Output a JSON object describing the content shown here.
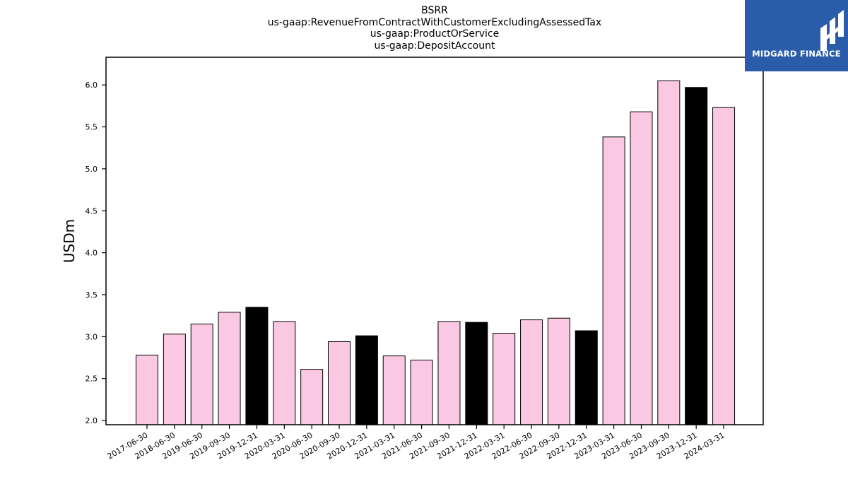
{
  "chart_data": {
    "type": "bar",
    "title_lines": [
      "BSRR",
      "us-gaap:RevenueFromContractWithCustomerExcludingAssessedTax",
      "us-gaap:ProductOrService",
      "us-gaap:DepositAccount"
    ],
    "ylabel": "USDm",
    "xlabel": "",
    "ylim": [
      1.95,
      6.33
    ],
    "yticks": [
      "2.0",
      "2.5",
      "3.0",
      "3.5",
      "4.0",
      "4.5",
      "5.0",
      "5.5",
      "6.0"
    ],
    "categories": [
      "2017-06-30",
      "2018-06-30",
      "2019-06-30",
      "2019-09-30",
      "2019-12-31",
      "2020-03-31",
      "2020-06-30",
      "2020-09-30",
      "2020-12-31",
      "2021-03-31",
      "2021-06-30",
      "2021-09-30",
      "2021-12-31",
      "2022-03-31",
      "2022-06-30",
      "2022-09-30",
      "2022-12-31",
      "2023-03-31",
      "2023-06-30",
      "2023-09-30",
      "2023-12-31",
      "2024-03-31"
    ],
    "values": [
      2.78,
      3.03,
      3.15,
      3.29,
      3.35,
      3.18,
      2.61,
      2.94,
      3.01,
      2.77,
      2.72,
      3.18,
      3.17,
      3.04,
      3.2,
      3.22,
      3.07,
      5.38,
      5.68,
      6.05,
      5.97,
      5.73
    ],
    "highlight": [
      false,
      false,
      false,
      false,
      true,
      false,
      false,
      false,
      true,
      false,
      false,
      false,
      true,
      false,
      false,
      false,
      true,
      false,
      false,
      false,
      true,
      false
    ],
    "colors": {
      "bar": "#fbc8e4",
      "highlight": "#000000",
      "edge": "#000000"
    }
  },
  "logo": {
    "text": "MIDGARD FINANCE",
    "bg": "#2a5caa"
  }
}
